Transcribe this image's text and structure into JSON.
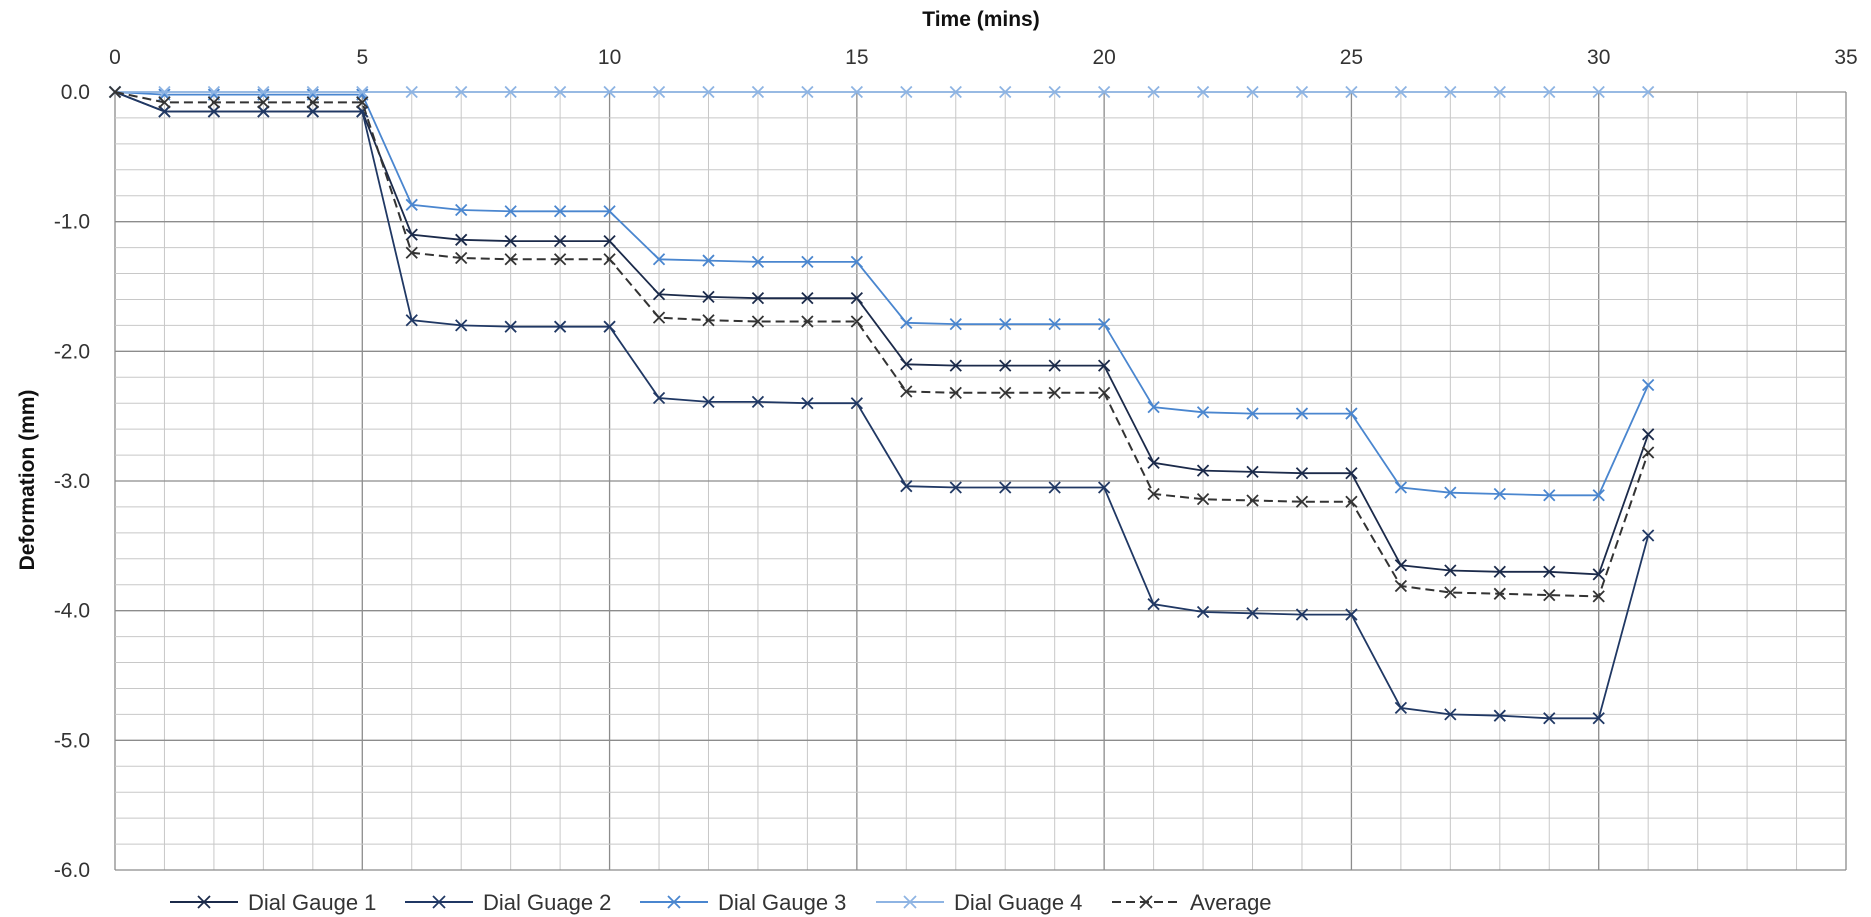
{
  "chart_data": {
    "type": "line",
    "title": "",
    "xlabel": "Time (mins)",
    "ylabel": "Deformation (mm)",
    "xlim": [
      0,
      35
    ],
    "ylim": [
      -6.0,
      0.0
    ],
    "x_ticks": [
      0,
      5,
      10,
      15,
      20,
      25,
      30,
      35
    ],
    "y_ticks": [
      0.0,
      -1.0,
      -2.0,
      -3.0,
      -4.0,
      -5.0,
      -6.0
    ],
    "x_axis_position": "top",
    "grid": true,
    "legend_position": "bottom",
    "x": [
      0,
      1,
      2,
      3,
      4,
      5,
      6,
      7,
      8,
      9,
      10,
      11,
      12,
      13,
      14,
      15,
      16,
      17,
      18,
      19,
      20,
      21,
      22,
      23,
      24,
      25,
      26,
      27,
      28,
      29,
      30,
      31
    ],
    "series": [
      {
        "name": "Dial Gauge 1",
        "color": "#1b2a4a",
        "dash": "solid",
        "values": [
          0,
          -0.15,
          -0.15,
          -0.15,
          -0.15,
          -0.15,
          -1.1,
          -1.14,
          -1.15,
          -1.15,
          -1.15,
          -1.56,
          -1.58,
          -1.59,
          -1.59,
          -1.59,
          -2.1,
          -2.11,
          -2.11,
          -2.11,
          -2.11,
          -2.86,
          -2.92,
          -2.93,
          -2.94,
          -2.94,
          -3.65,
          -3.69,
          -3.7,
          -3.7,
          -3.72,
          -2.64
        ]
      },
      {
        "name": "Dial Guage 2",
        "color": "#203864",
        "dash": "solid",
        "values": [
          0,
          -0.15,
          -0.15,
          -0.15,
          -0.15,
          -0.15,
          -1.76,
          -1.8,
          -1.81,
          -1.81,
          -1.81,
          -2.36,
          -2.39,
          -2.39,
          -2.4,
          -2.4,
          -3.04,
          -3.05,
          -3.05,
          -3.05,
          -3.05,
          -3.95,
          -4.01,
          -4.02,
          -4.03,
          -4.03,
          -4.75,
          -4.8,
          -4.81,
          -4.83,
          -4.83,
          -3.42
        ]
      },
      {
        "name": "Dial Gauge 3",
        "color": "#4a86cf",
        "dash": "solid",
        "values": [
          0,
          -0.02,
          -0.02,
          -0.02,
          -0.02,
          -0.02,
          -0.87,
          -0.91,
          -0.92,
          -0.92,
          -0.92,
          -1.29,
          -1.3,
          -1.31,
          -1.31,
          -1.31,
          -1.78,
          -1.79,
          -1.79,
          -1.79,
          -1.79,
          -2.43,
          -2.47,
          -2.48,
          -2.48,
          -2.48,
          -3.05,
          -3.09,
          -3.1,
          -3.11,
          -3.11,
          -2.26
        ]
      },
      {
        "name": "Dial Guage 4",
        "color": "#8eb4e3",
        "dash": "solid",
        "values": [
          0,
          0,
          0,
          0,
          0,
          0,
          0,
          0,
          0,
          0,
          0,
          0,
          0,
          0,
          0,
          0,
          0,
          0,
          0,
          0,
          0,
          0,
          0,
          0,
          0,
          0,
          0,
          0,
          0,
          0,
          0,
          0
        ]
      },
      {
        "name": "Average",
        "color": "#333333",
        "dash": "dashed",
        "values": [
          0,
          -0.08,
          -0.08,
          -0.08,
          -0.08,
          -0.08,
          -1.24,
          -1.28,
          -1.29,
          -1.29,
          -1.29,
          -1.74,
          -1.76,
          -1.77,
          -1.77,
          -1.77,
          -2.31,
          -2.32,
          -2.32,
          -2.32,
          -2.32,
          -3.1,
          -3.14,
          -3.15,
          -3.16,
          -3.16,
          -3.81,
          -3.86,
          -3.87,
          -3.88,
          -3.89,
          -2.78
        ]
      }
    ]
  }
}
